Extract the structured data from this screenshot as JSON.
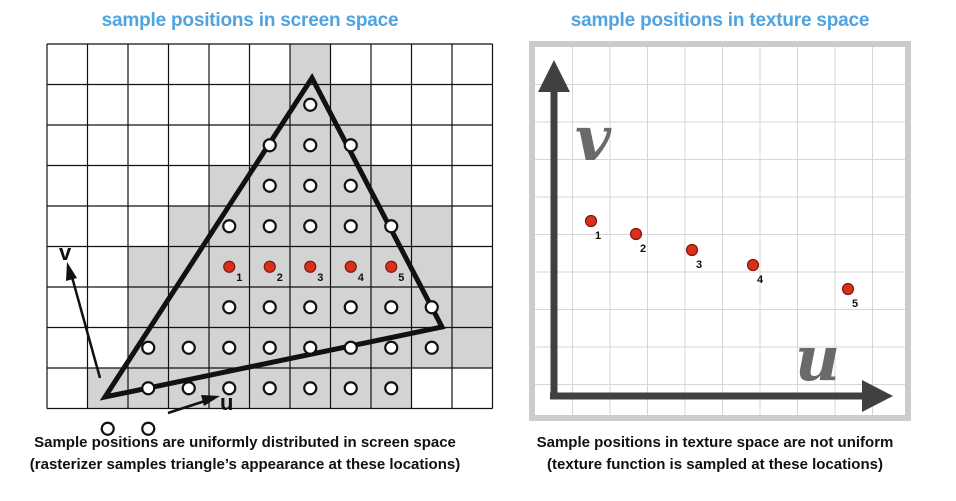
{
  "left_panel": {
    "title": "sample positions in screen space",
    "axis_u": "u",
    "axis_v": "v",
    "caption_line1": "Sample positions are uniformly distributed in screen space",
    "caption_line2": "(rasterizer samples triangle’s appearance at these locations)"
  },
  "right_panel": {
    "title": "sample positions in texture space",
    "axis_u": "u",
    "axis_v": "v",
    "caption_line1": "Sample positions in texture space are not uniform",
    "caption_line2": "(texture function is sampled at these locations)"
  },
  "sample_labels": [
    "1",
    "2",
    "3",
    "4",
    "5"
  ],
  "colors": {
    "title": "#4fa3e0",
    "covered_cell": "#d3d3d3",
    "highlight_sample": "#d9301b",
    "texture_frame": "#cccccc",
    "texture_axis": "#404040",
    "axis_letter": "#6a6a6a"
  }
}
